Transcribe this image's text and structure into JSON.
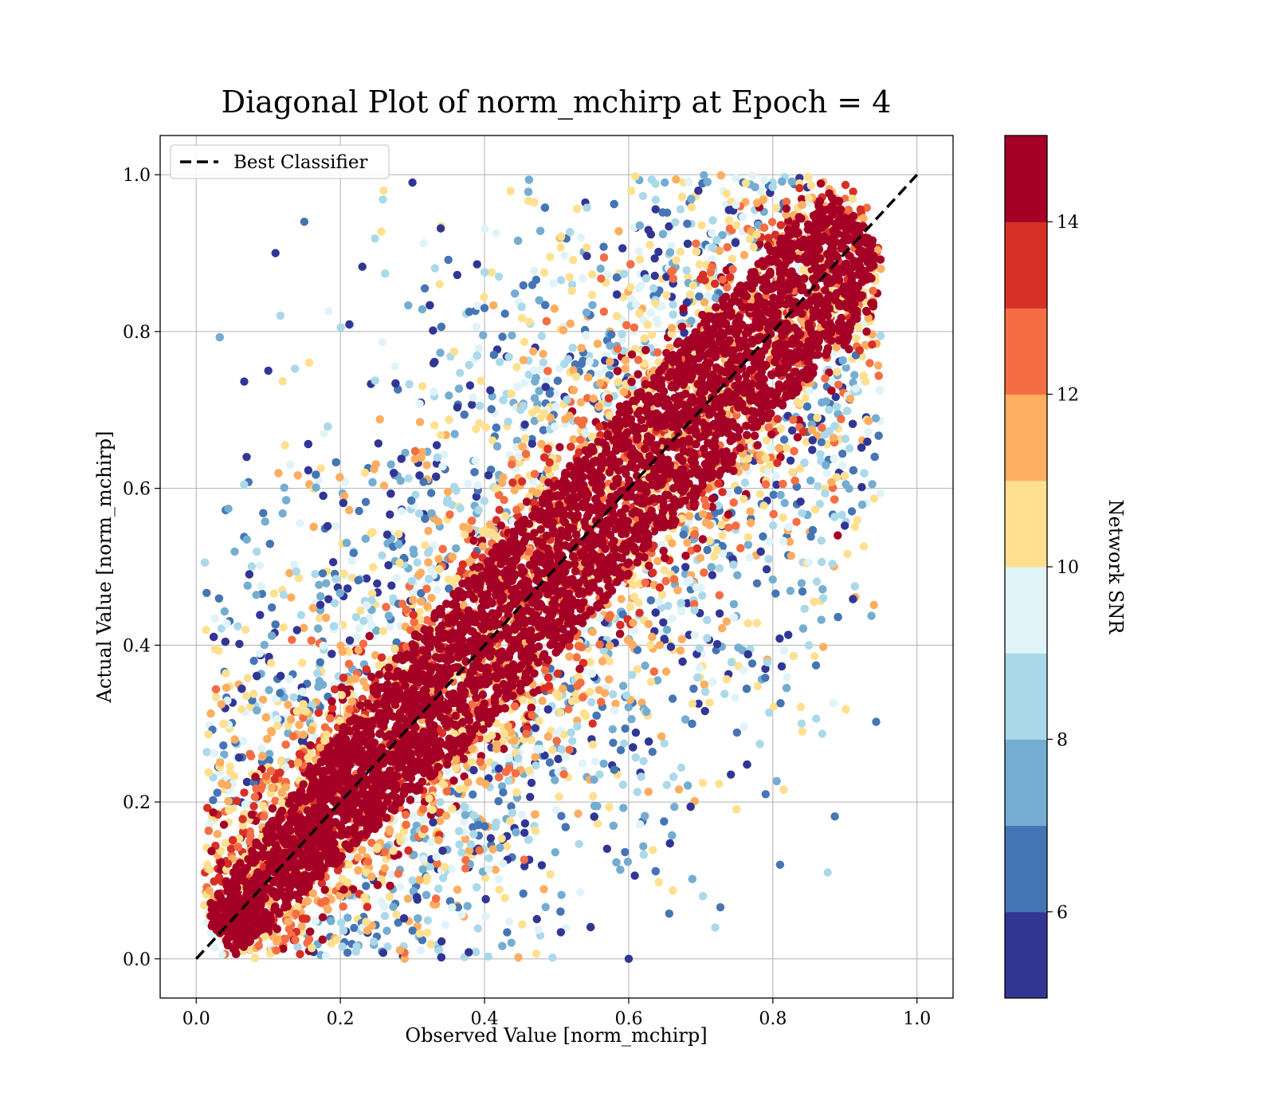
{
  "chart_data": {
    "type": "scatter",
    "title": "Diagonal Plot of norm_mchirp at Epoch = 4",
    "xlabel": "Observed Value [norm_mchirp]",
    "ylabel": "Actual Value [norm_mchirp]",
    "xlim": [
      -0.05,
      1.05
    ],
    "ylim": [
      -0.05,
      1.05
    ],
    "xticks": [
      "0.0",
      "0.2",
      "0.4",
      "0.6",
      "0.8",
      "1.0"
    ],
    "yticks": [
      "0.0",
      "0.2",
      "0.4",
      "0.6",
      "0.8",
      "1.0"
    ],
    "grid": true,
    "legend": {
      "placement": "top-left",
      "entries": [
        "Best Classifier"
      ]
    },
    "reference_line": {
      "name": "Best Classifier",
      "style": "dashed",
      "color": "#000000",
      "x": [
        0.0,
        1.0
      ],
      "y": [
        0.0,
        1.0
      ]
    },
    "colorbar": {
      "label": "Network SNR",
      "range": [
        5,
        15
      ],
      "ticks": [
        "6",
        "8",
        "10",
        "12",
        "14"
      ],
      "tick_values": [
        6,
        8,
        10,
        12,
        14
      ],
      "levels": [
        5,
        6,
        7,
        8,
        9,
        10,
        11,
        12,
        13,
        14,
        15
      ],
      "colors": [
        "#313695",
        "#4575b4",
        "#74add1",
        "#abd9e9",
        "#e0f3f8",
        "#fee090",
        "#fdae61",
        "#f46d43",
        "#d73027",
        "#a50026"
      ]
    },
    "points": [
      {
        "x": 0.11,
        "y": 0.9,
        "snr": 5.5
      },
      {
        "x": 0.15,
        "y": 0.94,
        "snr": 6.5
      },
      {
        "x": 0.07,
        "y": 0.64,
        "snr": 5.5
      },
      {
        "x": 0.1,
        "y": 0.75,
        "snr": 5.5
      },
      {
        "x": 0.08,
        "y": 0.38,
        "snr": 6.5
      },
      {
        "x": 0.81,
        "y": 0.12,
        "snr": 6.5
      },
      {
        "x": 0.65,
        "y": 0.99,
        "snr": 7.5
      },
      {
        "x": 0.84,
        "y": 0.3,
        "snr": 8.5
      },
      {
        "x": 0.87,
        "y": 0.46,
        "snr": 8.5
      },
      {
        "x": 0.93,
        "y": 0.8,
        "snr": 14.5
      },
      {
        "x": 0.89,
        "y": 0.54,
        "snr": 14.5
      },
      {
        "x": 0.92,
        "y": 0.89,
        "snr": 14.5
      },
      {
        "x": 0.85,
        "y": 0.4,
        "snr": 8.5
      },
      {
        "x": 0.79,
        "y": 0.21,
        "snr": 6.5
      },
      {
        "x": 0.72,
        "y": 0.04,
        "snr": 8.5
      },
      {
        "x": 0.6,
        "y": 0.0,
        "snr": 5.5
      },
      {
        "x": 0.26,
        "y": 0.98,
        "snr": 10.5
      },
      {
        "x": 0.3,
        "y": 0.99,
        "snr": 5.5
      },
      {
        "x": 0.4,
        "y": 0.83,
        "snr": 6.5
      },
      {
        "x": 0.45,
        "y": 0.7,
        "snr": 8.5
      },
      {
        "x": 0.55,
        "y": 0.3,
        "snr": 13.5
      },
      {
        "x": 0.3,
        "y": 0.1,
        "snr": 8.5
      },
      {
        "x": 0.05,
        "y": 0.05,
        "snr": 14.5
      },
      {
        "x": 0.5,
        "y": 0.5,
        "snr": 14.5
      },
      {
        "x": 0.7,
        "y": 0.7,
        "snr": 14.5
      },
      {
        "x": 0.3,
        "y": 0.3,
        "snr": 14.5
      }
    ]
  }
}
